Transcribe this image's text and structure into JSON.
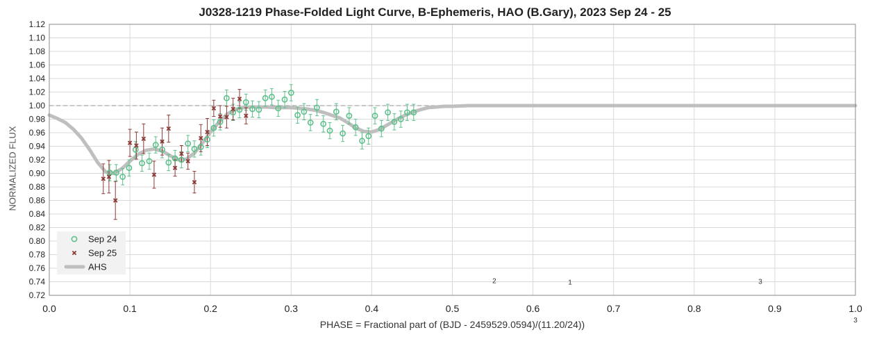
{
  "chart_data": {
    "type": "scatter",
    "title": "J0328-1219 Phase-Folded Light Curve, B-Ephemeris, HAO (B.Gary), 2023 Sep 24 - 25",
    "xlabel": "PHASE = Fractional part of (BJD - 2459529.0594)/(11.20/24))",
    "ylabel": "NORMALIZED FLUX",
    "xlim": [
      0.0,
      1.0
    ],
    "ylim": [
      0.72,
      1.12
    ],
    "x_ticks": [
      "0.0",
      "0.1",
      "0.2",
      "0.3",
      "0.4",
      "0.5",
      "0.6",
      "0.7",
      "0.8",
      "0.9",
      "1.0"
    ],
    "y_ticks": [
      "0.72",
      "0.74",
      "0.76",
      "0.78",
      "0.80",
      "0.82",
      "0.84",
      "0.86",
      "0.88",
      "0.90",
      "0.92",
      "0.94",
      "0.96",
      "0.98",
      "1.00",
      "1.02",
      "1.04",
      "1.06",
      "1.08",
      "1.10",
      "1.12"
    ],
    "grid": true,
    "reference_line": 1.0,
    "legend_position": "bottom-left",
    "annotations": [
      {
        "text": "2",
        "x": 0.552,
        "y": 0.738
      },
      {
        "text": "1",
        "x": 0.646,
        "y": 0.736
      },
      {
        "text": "3",
        "x": 0.882,
        "y": 0.737
      },
      {
        "text": "3",
        "x": 1.0,
        "y": 0.68
      }
    ],
    "series": [
      {
        "name": "Sep 24",
        "marker": "circle",
        "color": "#5dc08a",
        "x": [
          0.075,
          0.083,
          0.091,
          0.099,
          0.107,
          0.115,
          0.124,
          0.132,
          0.14,
          0.148,
          0.156,
          0.164,
          0.172,
          0.18,
          0.188,
          0.196,
          0.204,
          0.212,
          0.22,
          0.228,
          0.236,
          0.244,
          0.252,
          0.26,
          0.268,
          0.276,
          0.284,
          0.292,
          0.3,
          0.308,
          0.316,
          0.324,
          0.332,
          0.34,
          0.348,
          0.356,
          0.364,
          0.372,
          0.38,
          0.388,
          0.396,
          0.404,
          0.412,
          0.42,
          0.428,
          0.436,
          0.444,
          0.452
        ],
        "y": [
          0.901,
          0.901,
          0.895,
          0.908,
          0.935,
          0.915,
          0.918,
          0.942,
          0.935,
          0.916,
          0.922,
          0.92,
          0.944,
          0.936,
          0.939,
          0.95,
          0.967,
          0.976,
          1.011,
          0.99,
          0.994,
          1.005,
          0.995,
          0.994,
          1.011,
          1.013,
          0.996,
          1.009,
          1.019,
          0.986,
          0.991,
          0.975,
          0.997,
          0.973,
          0.963,
          0.991,
          0.959,
          0.985,
          0.968,
          0.948,
          0.955,
          0.985,
          0.966,
          0.99,
          0.976,
          0.98,
          0.99,
          0.99
        ],
        "yerr": [
          0.012,
          0.012,
          0.012,
          0.012,
          0.012,
          0.012,
          0.012,
          0.012,
          0.012,
          0.012,
          0.012,
          0.012,
          0.012,
          0.012,
          0.012,
          0.012,
          0.012,
          0.012,
          0.012,
          0.012,
          0.012,
          0.012,
          0.012,
          0.012,
          0.012,
          0.012,
          0.012,
          0.012,
          0.012,
          0.012,
          0.012,
          0.012,
          0.012,
          0.012,
          0.012,
          0.012,
          0.012,
          0.012,
          0.012,
          0.012,
          0.012,
          0.012,
          0.012,
          0.012,
          0.012,
          0.012,
          0.012,
          0.012
        ]
      },
      {
        "name": "Sep 25",
        "marker": "x",
        "color": "#8b3a36",
        "x": [
          0.067,
          0.074,
          0.082,
          0.1,
          0.108,
          0.117,
          0.13,
          0.14,
          0.148,
          0.156,
          0.164,
          0.172,
          0.18,
          0.188,
          0.196,
          0.204,
          0.212,
          0.22,
          0.228,
          0.236,
          0.244
        ],
        "y": [
          0.892,
          0.895,
          0.86,
          0.945,
          0.941,
          0.951,
          0.898,
          0.947,
          0.966,
          0.908,
          0.929,
          0.918,
          0.887,
          0.952,
          0.961,
          0.996,
          0.984,
          0.983,
          0.995,
          1.01,
          0.985
        ],
        "yerr": [
          0.022,
          0.024,
          0.028,
          0.02,
          0.02,
          0.022,
          0.02,
          0.02,
          0.02,
          0.012,
          0.012,
          0.012,
          0.016,
          0.02,
          0.02,
          0.012,
          0.016,
          0.016,
          0.016,
          0.014,
          0.012
        ]
      },
      {
        "name": "AHS",
        "marker": "line",
        "color": "#bfbfbf",
        "x": [
          0.0,
          0.01,
          0.02,
          0.03,
          0.04,
          0.05,
          0.06,
          0.07,
          0.08,
          0.09,
          0.1,
          0.11,
          0.12,
          0.13,
          0.14,
          0.15,
          0.16,
          0.17,
          0.18,
          0.19,
          0.2,
          0.21,
          0.22,
          0.23,
          0.24,
          0.25,
          0.26,
          0.27,
          0.28,
          0.29,
          0.3,
          0.31,
          0.32,
          0.33,
          0.34,
          0.35,
          0.36,
          0.37,
          0.38,
          0.39,
          0.4,
          0.41,
          0.42,
          0.43,
          0.44,
          0.45,
          0.46,
          0.47,
          0.48,
          0.49,
          0.5,
          0.52,
          0.55,
          0.6,
          0.7,
          0.8,
          0.9,
          1.0
        ],
        "y": [
          0.986,
          0.981,
          0.975,
          0.965,
          0.952,
          0.935,
          0.916,
          0.902,
          0.9,
          0.907,
          0.918,
          0.928,
          0.934,
          0.936,
          0.933,
          0.926,
          0.92,
          0.921,
          0.93,
          0.945,
          0.961,
          0.975,
          0.987,
          0.994,
          0.997,
          0.998,
          0.998,
          0.998,
          0.997,
          0.997,
          0.997,
          0.996,
          0.995,
          0.993,
          0.99,
          0.986,
          0.982,
          0.975,
          0.967,
          0.962,
          0.961,
          0.965,
          0.972,
          0.979,
          0.985,
          0.99,
          0.994,
          0.997,
          0.998,
          0.999,
          0.999,
          1.0,
          1.0,
          1.0,
          1.0,
          1.0,
          1.0,
          1.0
        ]
      }
    ]
  }
}
